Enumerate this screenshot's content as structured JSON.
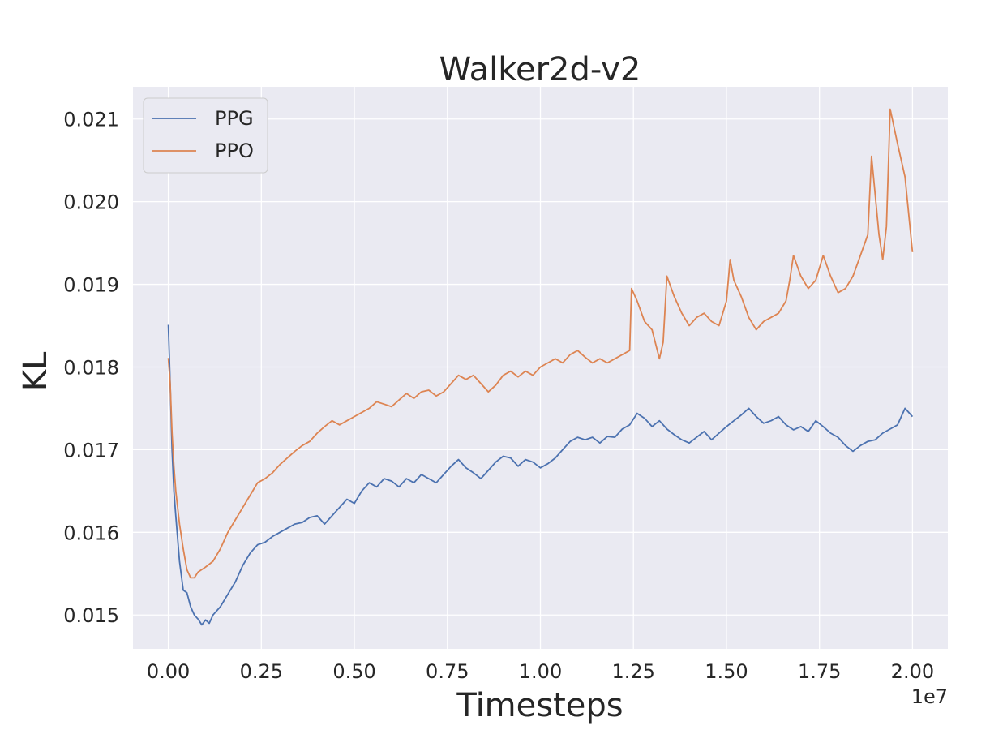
{
  "chart_data": {
    "type": "line",
    "title": "Walker2d-v2",
    "xlabel": "Timesteps",
    "ylabel": "KL",
    "x_offset_label": "1e7",
    "xlim": [
      -0.095,
      2.095
    ],
    "ylim": [
      0.01459,
      0.02139
    ],
    "x_ticks": [
      0.0,
      0.25,
      0.5,
      0.75,
      1.0,
      1.25,
      1.5,
      1.75,
      2.0
    ],
    "x_tick_labels": [
      "0.00",
      "0.25",
      "0.50",
      "0.75",
      "1.00",
      "1.25",
      "1.50",
      "1.75",
      "2.00"
    ],
    "y_ticks": [
      0.015,
      0.016,
      0.017,
      0.018,
      0.019,
      0.02,
      0.021
    ],
    "y_tick_labels": [
      "0.015",
      "0.016",
      "0.017",
      "0.018",
      "0.019",
      "0.020",
      "0.021"
    ],
    "grid": true,
    "legend_position": "top-left",
    "series": [
      {
        "name": "PPG",
        "color": "#4c72b0",
        "points": [
          [
            0.0,
            0.01851
          ],
          [
            0.005,
            0.0178
          ],
          [
            0.01,
            0.017
          ],
          [
            0.015,
            0.0165
          ],
          [
            0.02,
            0.0162
          ],
          [
            0.03,
            0.01565
          ],
          [
            0.04,
            0.0153
          ],
          [
            0.05,
            0.01527
          ],
          [
            0.06,
            0.0151
          ],
          [
            0.07,
            0.015
          ],
          [
            0.08,
            0.01495
          ],
          [
            0.09,
            0.01488
          ],
          [
            0.1,
            0.01494
          ],
          [
            0.11,
            0.0149
          ],
          [
            0.12,
            0.015
          ],
          [
            0.14,
            0.0151
          ],
          [
            0.16,
            0.01525
          ],
          [
            0.18,
            0.0154
          ],
          [
            0.2,
            0.0156
          ],
          [
            0.22,
            0.01575
          ],
          [
            0.24,
            0.01585
          ],
          [
            0.26,
            0.01588
          ],
          [
            0.28,
            0.01595
          ],
          [
            0.3,
            0.016
          ],
          [
            0.32,
            0.01605
          ],
          [
            0.34,
            0.0161
          ],
          [
            0.36,
            0.01612
          ],
          [
            0.38,
            0.01618
          ],
          [
            0.4,
            0.0162
          ],
          [
            0.42,
            0.0161
          ],
          [
            0.44,
            0.0162
          ],
          [
            0.46,
            0.0163
          ],
          [
            0.48,
            0.0164
          ],
          [
            0.5,
            0.01635
          ],
          [
            0.52,
            0.0165
          ],
          [
            0.54,
            0.0166
          ],
          [
            0.56,
            0.01655
          ],
          [
            0.58,
            0.01665
          ],
          [
            0.6,
            0.01662
          ],
          [
            0.62,
            0.01655
          ],
          [
            0.64,
            0.01665
          ],
          [
            0.66,
            0.0166
          ],
          [
            0.68,
            0.0167
          ],
          [
            0.7,
            0.01665
          ],
          [
            0.72,
            0.0166
          ],
          [
            0.74,
            0.0167
          ],
          [
            0.76,
            0.0168
          ],
          [
            0.78,
            0.01688
          ],
          [
            0.8,
            0.01678
          ],
          [
            0.82,
            0.01672
          ],
          [
            0.84,
            0.01665
          ],
          [
            0.86,
            0.01675
          ],
          [
            0.88,
            0.01685
          ],
          [
            0.9,
            0.01692
          ],
          [
            0.92,
            0.0169
          ],
          [
            0.94,
            0.0168
          ],
          [
            0.96,
            0.01688
          ],
          [
            0.98,
            0.01685
          ],
          [
            1.0,
            0.01678
          ],
          [
            1.02,
            0.01683
          ],
          [
            1.04,
            0.0169
          ],
          [
            1.06,
            0.017
          ],
          [
            1.08,
            0.0171
          ],
          [
            1.1,
            0.01715
          ],
          [
            1.12,
            0.01712
          ],
          [
            1.14,
            0.01715
          ],
          [
            1.16,
            0.01708
          ],
          [
            1.18,
            0.01716
          ],
          [
            1.2,
            0.01715
          ],
          [
            1.22,
            0.01725
          ],
          [
            1.24,
            0.0173
          ],
          [
            1.26,
            0.01744
          ],
          [
            1.28,
            0.01738
          ],
          [
            1.3,
            0.01728
          ],
          [
            1.32,
            0.01735
          ],
          [
            1.34,
            0.01725
          ],
          [
            1.36,
            0.01718
          ],
          [
            1.38,
            0.01712
          ],
          [
            1.4,
            0.01708
          ],
          [
            1.42,
            0.01715
          ],
          [
            1.44,
            0.01722
          ],
          [
            1.46,
            0.01712
          ],
          [
            1.48,
            0.0172
          ],
          [
            1.5,
            0.01728
          ],
          [
            1.52,
            0.01735
          ],
          [
            1.54,
            0.01742
          ],
          [
            1.56,
            0.0175
          ],
          [
            1.58,
            0.0174
          ],
          [
            1.6,
            0.01732
          ],
          [
            1.62,
            0.01735
          ],
          [
            1.64,
            0.0174
          ],
          [
            1.66,
            0.0173
          ],
          [
            1.68,
            0.01724
          ],
          [
            1.7,
            0.01728
          ],
          [
            1.72,
            0.01722
          ],
          [
            1.74,
            0.01735
          ],
          [
            1.76,
            0.01728
          ],
          [
            1.78,
            0.0172
          ],
          [
            1.8,
            0.01715
          ],
          [
            1.82,
            0.01705
          ],
          [
            1.84,
            0.01698
          ],
          [
            1.86,
            0.01705
          ],
          [
            1.88,
            0.0171
          ],
          [
            1.9,
            0.01712
          ],
          [
            1.92,
            0.0172
          ],
          [
            1.94,
            0.01725
          ],
          [
            1.96,
            0.0173
          ],
          [
            1.98,
            0.0175
          ],
          [
            2.0,
            0.0174
          ]
        ]
      },
      {
        "name": "PPO",
        "color": "#dd8452",
        "points": [
          [
            0.0,
            0.01811
          ],
          [
            0.005,
            0.0178
          ],
          [
            0.01,
            0.0172
          ],
          [
            0.015,
            0.0168
          ],
          [
            0.02,
            0.0165
          ],
          [
            0.03,
            0.0161
          ],
          [
            0.04,
            0.0158
          ],
          [
            0.05,
            0.01555
          ],
          [
            0.06,
            0.01545
          ],
          [
            0.07,
            0.01545
          ],
          [
            0.08,
            0.01552
          ],
          [
            0.1,
            0.01558
          ],
          [
            0.12,
            0.01565
          ],
          [
            0.14,
            0.0158
          ],
          [
            0.16,
            0.016
          ],
          [
            0.18,
            0.01615
          ],
          [
            0.2,
            0.0163
          ],
          [
            0.22,
            0.01645
          ],
          [
            0.24,
            0.0166
          ],
          [
            0.26,
            0.01665
          ],
          [
            0.28,
            0.01672
          ],
          [
            0.3,
            0.01682
          ],
          [
            0.32,
            0.0169
          ],
          [
            0.34,
            0.01698
          ],
          [
            0.36,
            0.01705
          ],
          [
            0.38,
            0.0171
          ],
          [
            0.4,
            0.0172
          ],
          [
            0.42,
            0.01728
          ],
          [
            0.44,
            0.01735
          ],
          [
            0.46,
            0.0173
          ],
          [
            0.48,
            0.01735
          ],
          [
            0.5,
            0.0174
          ],
          [
            0.52,
            0.01745
          ],
          [
            0.54,
            0.0175
          ],
          [
            0.56,
            0.01758
          ],
          [
            0.58,
            0.01755
          ],
          [
            0.6,
            0.01752
          ],
          [
            0.62,
            0.0176
          ],
          [
            0.64,
            0.01768
          ],
          [
            0.66,
            0.01762
          ],
          [
            0.68,
            0.0177
          ],
          [
            0.7,
            0.01772
          ],
          [
            0.72,
            0.01765
          ],
          [
            0.74,
            0.0177
          ],
          [
            0.76,
            0.0178
          ],
          [
            0.78,
            0.0179
          ],
          [
            0.8,
            0.01785
          ],
          [
            0.82,
            0.0179
          ],
          [
            0.84,
            0.0178
          ],
          [
            0.86,
            0.0177
          ],
          [
            0.88,
            0.01778
          ],
          [
            0.9,
            0.0179
          ],
          [
            0.92,
            0.01795
          ],
          [
            0.94,
            0.01788
          ],
          [
            0.96,
            0.01795
          ],
          [
            0.98,
            0.0179
          ],
          [
            1.0,
            0.018
          ],
          [
            1.02,
            0.01805
          ],
          [
            1.04,
            0.0181
          ],
          [
            1.06,
            0.01805
          ],
          [
            1.08,
            0.01815
          ],
          [
            1.1,
            0.0182
          ],
          [
            1.12,
            0.01812
          ],
          [
            1.14,
            0.01805
          ],
          [
            1.16,
            0.0181
          ],
          [
            1.18,
            0.01805
          ],
          [
            1.2,
            0.0181
          ],
          [
            1.22,
            0.01815
          ],
          [
            1.24,
            0.0182
          ],
          [
            1.245,
            0.01895
          ],
          [
            1.26,
            0.0188
          ],
          [
            1.28,
            0.01855
          ],
          [
            1.3,
            0.01845
          ],
          [
            1.32,
            0.0181
          ],
          [
            1.33,
            0.0183
          ],
          [
            1.34,
            0.0191
          ],
          [
            1.36,
            0.01885
          ],
          [
            1.38,
            0.01865
          ],
          [
            1.4,
            0.0185
          ],
          [
            1.42,
            0.0186
          ],
          [
            1.44,
            0.01865
          ],
          [
            1.46,
            0.01855
          ],
          [
            1.48,
            0.0185
          ],
          [
            1.5,
            0.0188
          ],
          [
            1.51,
            0.0193
          ],
          [
            1.52,
            0.01905
          ],
          [
            1.54,
            0.01885
          ],
          [
            1.56,
            0.0186
          ],
          [
            1.58,
            0.01845
          ],
          [
            1.6,
            0.01855
          ],
          [
            1.62,
            0.0186
          ],
          [
            1.64,
            0.01865
          ],
          [
            1.66,
            0.0188
          ],
          [
            1.67,
            0.01905
          ],
          [
            1.68,
            0.01935
          ],
          [
            1.7,
            0.0191
          ],
          [
            1.72,
            0.01895
          ],
          [
            1.74,
            0.01905
          ],
          [
            1.75,
            0.0192
          ],
          [
            1.76,
            0.01935
          ],
          [
            1.78,
            0.0191
          ],
          [
            1.8,
            0.0189
          ],
          [
            1.82,
            0.01895
          ],
          [
            1.84,
            0.0191
          ],
          [
            1.86,
            0.01935
          ],
          [
            1.88,
            0.0196
          ],
          [
            1.89,
            0.02055
          ],
          [
            1.91,
            0.0196
          ],
          [
            1.92,
            0.0193
          ],
          [
            1.93,
            0.0197
          ],
          [
            1.94,
            0.02112
          ],
          [
            1.96,
            0.0207
          ],
          [
            1.98,
            0.0203
          ],
          [
            2.0,
            0.01939
          ]
        ]
      }
    ]
  }
}
